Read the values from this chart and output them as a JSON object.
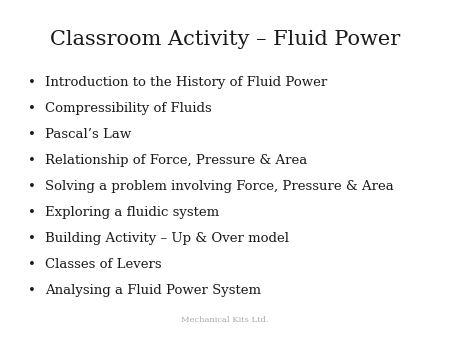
{
  "title": "Classroom Activity – Fluid Power",
  "bullet_points": [
    "Introduction to the History of Fluid Power",
    "Compressibility of Fluids",
    "Pascal’s Law",
    "Relationship of Force, Pressure & Area",
    "Solving a problem involving Force, Pressure & Area",
    "Exploring a fluidic system",
    "Building Activity – Up & Over model",
    "Classes of Levers",
    "Analysing a Fluid Power System"
  ],
  "footer": "Mechanical Kits Ltd.",
  "background_color": "#ffffff",
  "title_fontsize": 15,
  "bullet_fontsize": 9.5,
  "footer_fontsize": 6,
  "title_color": "#1a1a1a",
  "bullet_color": "#1a1a1a",
  "footer_color": "#aaaaaa"
}
